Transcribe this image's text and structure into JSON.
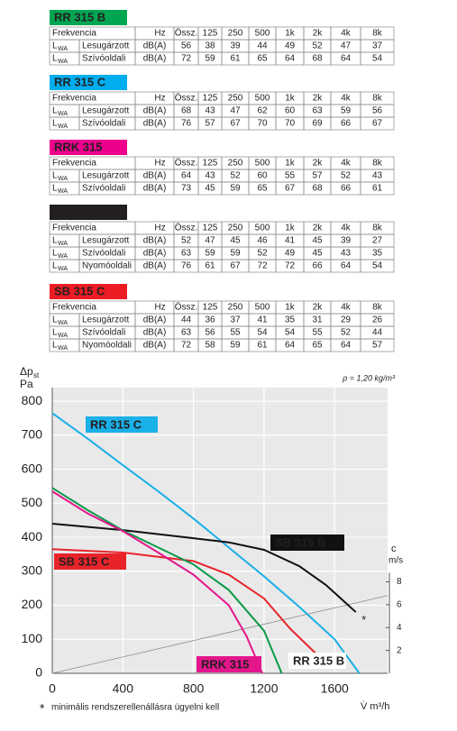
{
  "tables": [
    {
      "title": "RR 315 B",
      "color": "#00a651",
      "header": {
        "label": "Frekvencia",
        "unit": "Hz",
        "columns": [
          "Össz.",
          "125",
          "250",
          "500",
          "1k",
          "2k",
          "4k",
          "8k"
        ]
      },
      "rows": [
        {
          "symbol": "L",
          "sub": "WA",
          "name": "Lesugárzott",
          "unit": "dB(A)",
          "values": [
            56,
            38,
            39,
            44,
            49,
            52,
            47,
            37
          ]
        },
        {
          "symbol": "L",
          "sub": "WA",
          "name": "Szívóoldali",
          "unit": "dB(A)",
          "values": [
            72,
            59,
            61,
            65,
            64,
            68,
            64,
            54
          ]
        }
      ]
    },
    {
      "title": "RR 315 C",
      "color": "#00aeef",
      "header": {
        "label": "Frekvencia",
        "unit": "Hz",
        "columns": [
          "Össz.",
          "125",
          "250",
          "500",
          "1k",
          "2k",
          "4k",
          "8k"
        ]
      },
      "rows": [
        {
          "symbol": "L",
          "sub": "WA",
          "name": "Lesugárzott",
          "unit": "dB(A)",
          "values": [
            68,
            43,
            47,
            62,
            60,
            63,
            59,
            56
          ]
        },
        {
          "symbol": "L",
          "sub": "WA",
          "name": "Szívóoldali",
          "unit": "dB(A)",
          "values": [
            76,
            57,
            67,
            70,
            70,
            69,
            66,
            67
          ]
        }
      ]
    },
    {
      "title": "RRK 315",
      "color": "#ec008c",
      "header": {
        "label": "Frekvencia",
        "unit": "Hz",
        "columns": [
          "Össz.",
          "125",
          "250",
          "500",
          "1k",
          "2k",
          "4k",
          "8k"
        ]
      },
      "rows": [
        {
          "symbol": "L",
          "sub": "WA",
          "name": "Lesugárzott",
          "unit": "dB(A)",
          "values": [
            64,
            43,
            52,
            60,
            55,
            57,
            52,
            43
          ]
        },
        {
          "symbol": "L",
          "sub": "WA",
          "name": "Szívóoldali",
          "unit": "dB(A)",
          "values": [
            73,
            45,
            59,
            65,
            67,
            68,
            66,
            61
          ]
        }
      ]
    },
    {
      "title": "SB 315 B",
      "color": "#231f20",
      "header": {
        "label": "Frekvencia",
        "unit": "Hz",
        "columns": [
          "Össz.",
          "125",
          "250",
          "500",
          "1k",
          "2k",
          "4k",
          "8k"
        ]
      },
      "rows": [
        {
          "symbol": "L",
          "sub": "WA",
          "name": "Lesugárzott",
          "unit": "dB(A)",
          "values": [
            52,
            47,
            45,
            46,
            41,
            45,
            39,
            27
          ]
        },
        {
          "symbol": "L",
          "sub": "WA",
          "name": "Szívóoldali",
          "unit": "dB(A)",
          "values": [
            63,
            59,
            59,
            52,
            49,
            45,
            43,
            35
          ]
        },
        {
          "symbol": "L",
          "sub": "WA",
          "name": "Nyomóoldali",
          "unit": "dB(A)",
          "values": [
            76,
            61,
            67,
            72,
            72,
            66,
            64,
            54
          ]
        }
      ]
    },
    {
      "title": "SB 315 C",
      "color": "#ed1c24",
      "header": {
        "label": "Frekvencia",
        "unit": "Hz",
        "columns": [
          "Össz.",
          "125",
          "250",
          "500",
          "1k",
          "2k",
          "4k",
          "8k"
        ]
      },
      "rows": [
        {
          "symbol": "L",
          "sub": "WA",
          "name": "Lesugárzott",
          "unit": "dB(A)",
          "values": [
            44,
            36,
            37,
            41,
            35,
            31,
            29,
            26
          ]
        },
        {
          "symbol": "L",
          "sub": "WA",
          "name": "Szívóoldali",
          "unit": "dB(A)",
          "values": [
            63,
            56,
            55,
            54,
            54,
            55,
            52,
            44
          ]
        },
        {
          "symbol": "L",
          "sub": "WA",
          "name": "Nyomóoldali",
          "unit": "dB(A)",
          "values": [
            72,
            58,
            59,
            61,
            64,
            65,
            64,
            57
          ]
        }
      ]
    }
  ],
  "chart_data": {
    "type": "line",
    "ylabel": "Δp",
    "ylabel_sub": "st",
    "ylabel_unit": "Pa",
    "xlabel": "V̇ m³/h",
    "y2label": "c",
    "y2label_unit": "m/s",
    "annotation": "ρ = 1,20 kg/m³",
    "footnote_mark": "*",
    "footnote": "minimális rendszerellenállásra ügyelni kell",
    "xlim": [
      0,
      1900
    ],
    "xticks": [
      0,
      400,
      800,
      1200,
      1600
    ],
    "ylim": [
      0,
      840
    ],
    "yticks": [
      0,
      100,
      200,
      300,
      400,
      500,
      600,
      700,
      800
    ],
    "y2lim": [
      0,
      25
    ],
    "y2ticks": [
      2,
      4,
      6,
      8
    ],
    "grid": true,
    "series": [
      {
        "name": "RR 315 C",
        "color": "#1ab0e8",
        "x": [
          0,
          200,
          400,
          600,
          800,
          1000,
          1200,
          1400,
          1600,
          1740
        ],
        "values": [
          765,
          690,
          612,
          535,
          455,
          370,
          285,
          195,
          100,
          0
        ]
      },
      {
        "name": "SB 315 B",
        "color": "#111111",
        "x": [
          0,
          400,
          800,
          1000,
          1200,
          1400,
          1550,
          1720
        ],
        "values": [
          440,
          421,
          397,
          385,
          363,
          315,
          260,
          180
        ]
      },
      {
        "name": "SB 315 C",
        "color": "#e8232a",
        "x": [
          0,
          400,
          800,
          1000,
          1200,
          1350,
          1520
        ],
        "values": [
          365,
          355,
          330,
          290,
          220,
          130,
          45
        ]
      },
      {
        "name": "RR 315 B",
        "color": "#0a9a48",
        "x": [
          0,
          200,
          400,
          600,
          800,
          1000,
          1200,
          1300
        ],
        "values": [
          545,
          480,
          420,
          370,
          320,
          245,
          125,
          0
        ]
      },
      {
        "name": "RRK 315",
        "color": "#e4168c",
        "x": [
          0,
          200,
          400,
          600,
          800,
          1000,
          1100,
          1190
        ],
        "values": [
          535,
          470,
          418,
          355,
          290,
          200,
          110,
          0
        ]
      }
    ],
    "reference_line": {
      "axis": "y2",
      "color": "#8a8a8a",
      "x": [
        0,
        1900
      ],
      "values": [
        0,
        6.8
      ]
    },
    "markers": {
      "color": "#e8232a",
      "x": [
        1745,
        1530
      ],
      "values": [
        165,
        50
      ]
    }
  }
}
